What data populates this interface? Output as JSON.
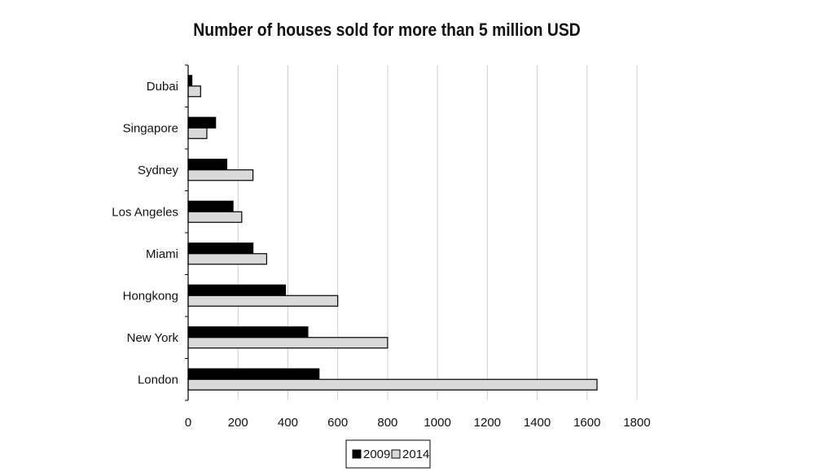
{
  "chart_data": {
    "type": "bar",
    "orientation": "horizontal",
    "title": "Number of houses sold for more than 5 million USD",
    "xlabel": "",
    "ylabel": "",
    "categories": [
      "Dubai",
      "Singapore",
      "Sydney",
      "Los Angeles",
      "Miami",
      "Hongkong",
      "New York",
      "London"
    ],
    "series": [
      {
        "name": "2009",
        "color": "#000000",
        "values": [
          15,
          110,
          155,
          180,
          260,
          390,
          480,
          525
        ]
      },
      {
        "name": "2014",
        "color": "#d9d9d9",
        "values": [
          50,
          75,
          260,
          215,
          315,
          600,
          800,
          1640
        ]
      }
    ],
    "xlim": [
      0,
      1800
    ],
    "ticks": [
      0,
      200,
      400,
      600,
      800,
      1000,
      1200,
      1400,
      1600,
      1800
    ],
    "grid": true,
    "legend_position": "bottom"
  }
}
